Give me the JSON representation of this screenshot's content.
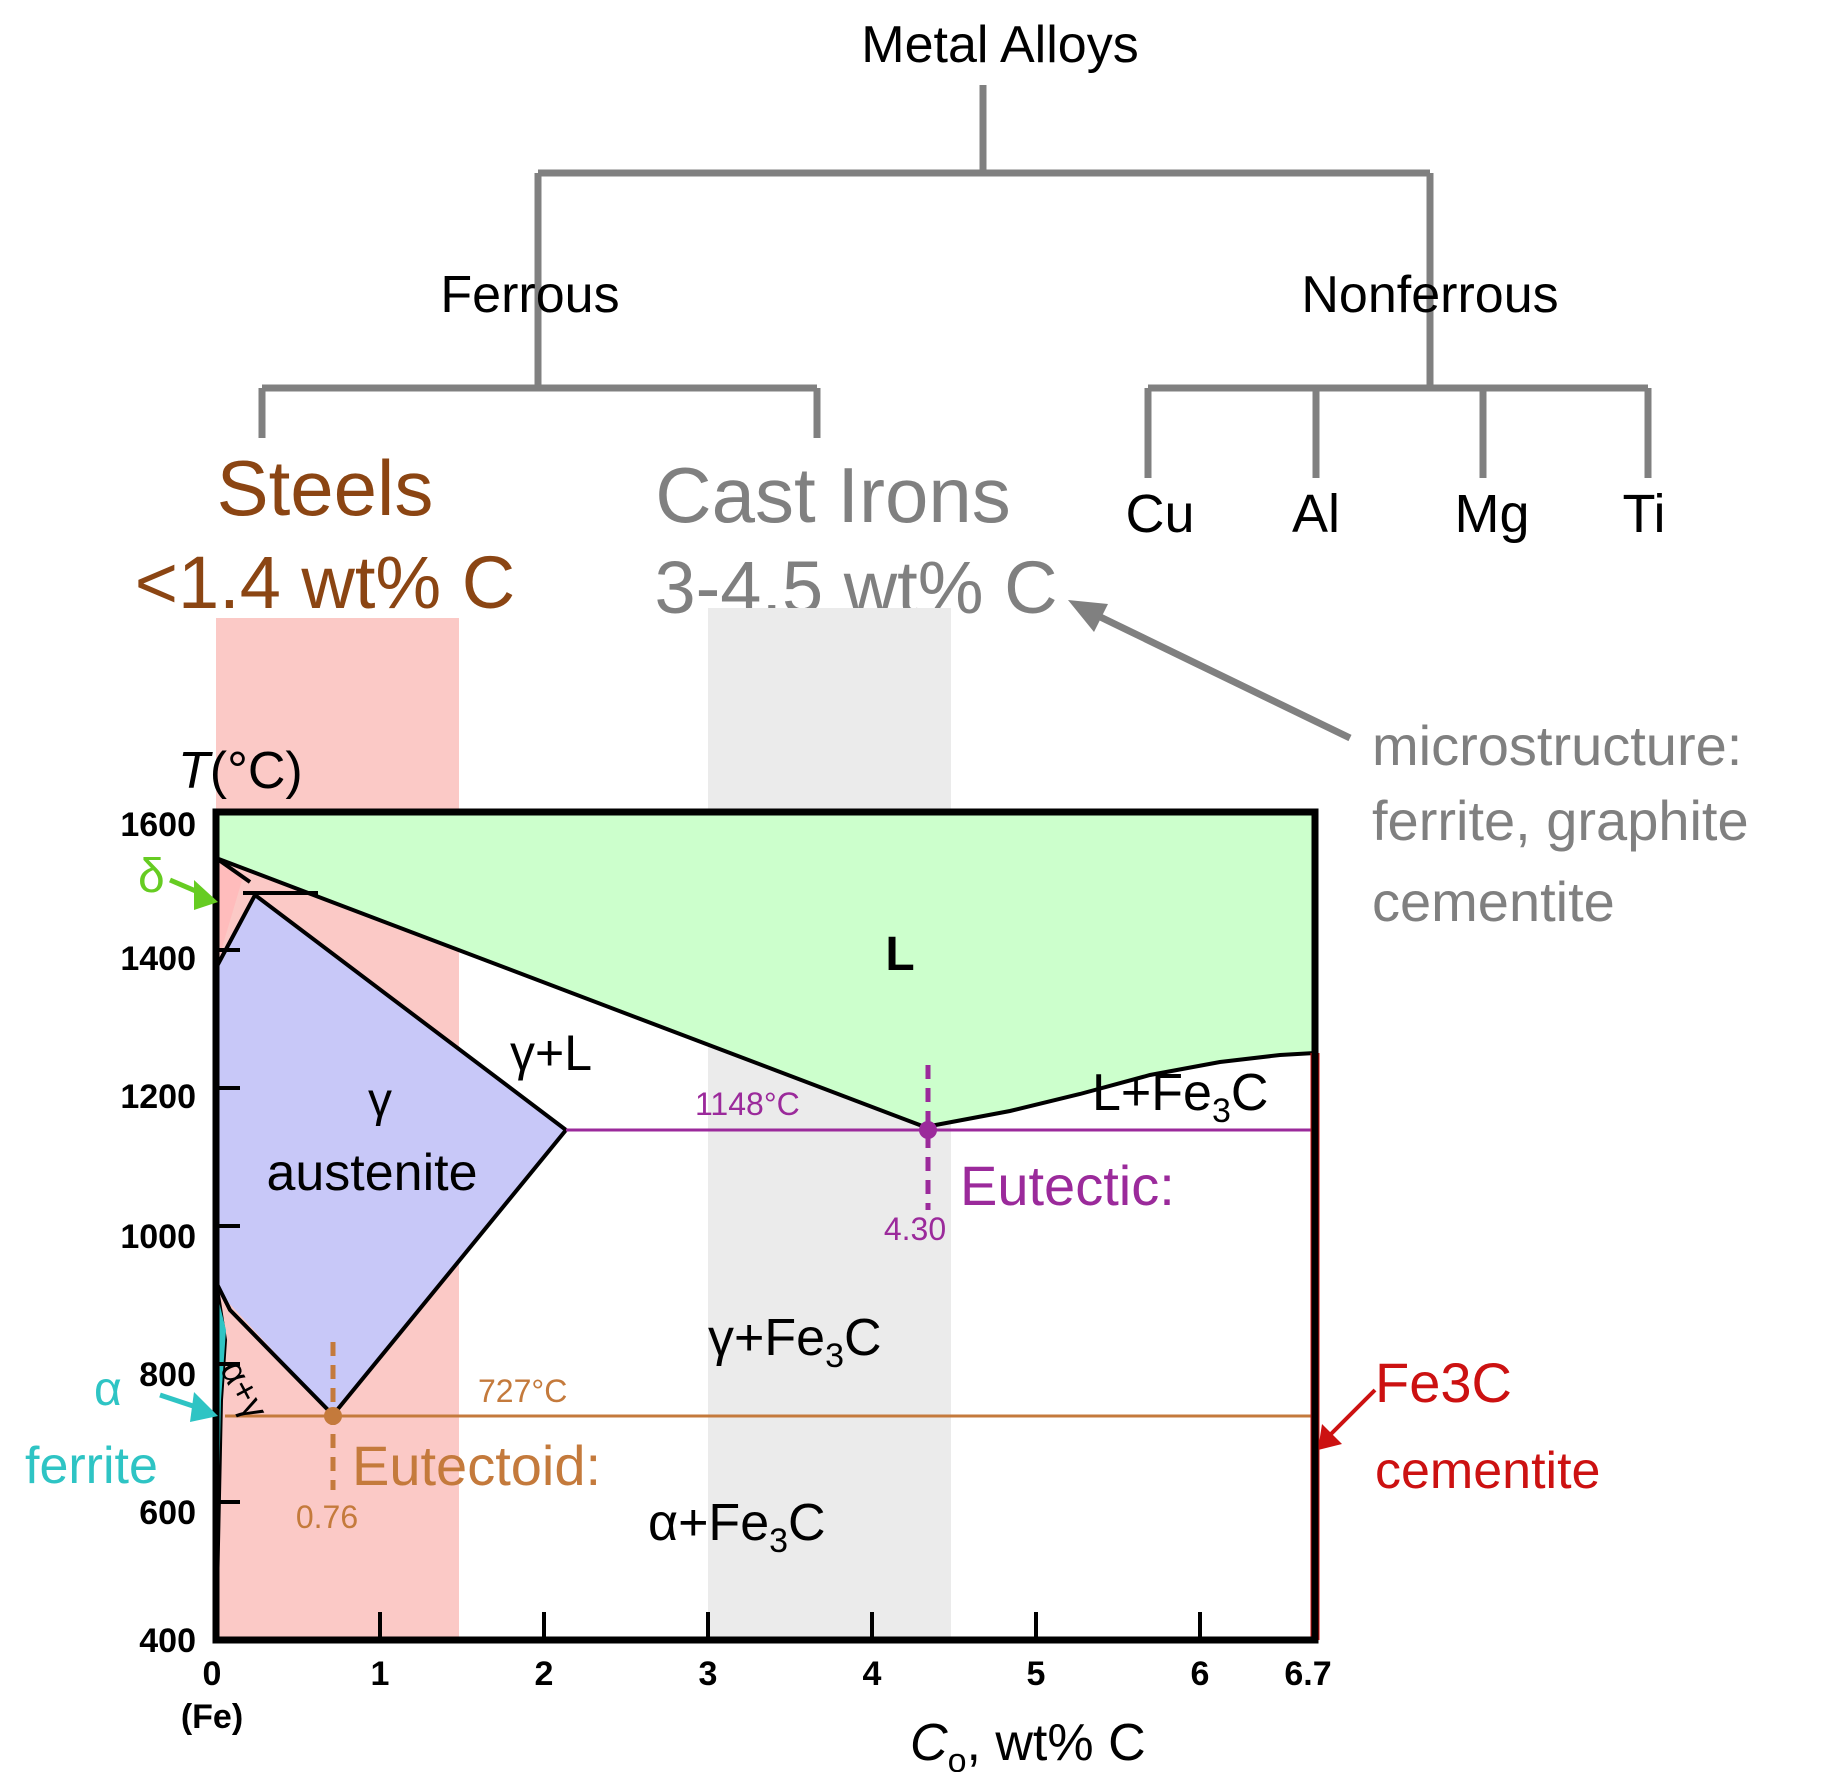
{
  "tree": {
    "root": "Metal Alloys",
    "ferrous": "Ferrous",
    "nonferrous": "Nonferrous",
    "steels": "Steels",
    "steels_range": "<1.4 wt% C",
    "cast_irons": "Cast Irons",
    "cast_irons_range": "3-4.5 wt% C",
    "nonferrous_metals": [
      "Cu",
      "Al",
      "Mg",
      "Ti"
    ]
  },
  "callout": {
    "lines": [
      "microstructure:",
      "ferrite, graphite",
      "cementite"
    ]
  },
  "diagram": {
    "ylabel_T": "T",
    "ylabel_unit": "(°C)",
    "xlabel_C": "C",
    "xlabel_sub": "o",
    "xlabel_unit": ", wt% C",
    "fe_label": "(Fe)",
    "delta": "δ",
    "alpha": "α",
    "ferrite": "ferrite",
    "L": "L",
    "gamma": "γ",
    "austenite": "austenite",
    "gamma_L": "γ+L",
    "L_Fe3C": "L+Fe",
    "gamma_Fe3C": "γ+Fe",
    "alpha_Fe3C": "α+Fe",
    "alpha_gamma": "α+γ",
    "sub3": "3",
    "C": "C",
    "eutectic_temp": "1148°C",
    "eutectoid_temp": "727°C",
    "eutectic_label": "Eutectic:",
    "eutectoid_label": "Eutectoid:",
    "eutectic_comp": "4.30",
    "eutectoid_comp": "0.76",
    "fe3c_label": "Fe",
    "fe3c_sub": "3",
    "fe3c_c": "C",
    "cementite": "cementite",
    "x_ticks": [
      "0",
      "1",
      "2",
      "3",
      "4",
      "5",
      "6",
      "6.7"
    ],
    "y_ticks": [
      "400",
      "600",
      "800",
      "1000",
      "1200",
      "1400",
      "1600"
    ]
  },
  "chart_data": {
    "type": "phase-diagram",
    "xlabel": "Co, wt% C",
    "ylabel": "T(°C)",
    "xlim": [
      0,
      6.7
    ],
    "ylim": [
      400,
      1600
    ],
    "eutectic": {
      "composition": 4.3,
      "temperature": 1148
    },
    "eutectoid": {
      "composition": 0.76,
      "temperature": 727
    },
    "steel_range_wt_pct_C": [
      0,
      1.4
    ],
    "cast_iron_range_wt_pct_C": [
      3,
      4.5
    ],
    "colors": {
      "liquid": "#ccffcc",
      "austenite": "#c8c8f8",
      "steel_band": "#fbc9c6",
      "cast_iron_band": "#ebebeb",
      "eutectic": "#9b2a9b",
      "eutectoid": "#c47a3c",
      "cementite": "#cc1111",
      "ferrite": "#2ec4c4",
      "delta": "#66cc22",
      "steels_text": "#8b4513",
      "cast_irons_text": "#808080"
    }
  }
}
